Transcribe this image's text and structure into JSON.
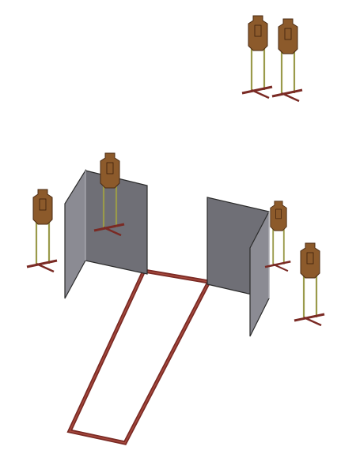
{
  "colors": {
    "background": "#ffffff",
    "wall_front": "#6f6f76",
    "wall_side": "#8b8b93",
    "wall_edge": "#2b2b2b",
    "box_outline": "#7a2a24",
    "target_face": "#8c5a2b",
    "target_edge": "#4a2a12",
    "stand_frame": "#9a9a4a",
    "stand_base": "#7a2a24"
  },
  "icons": {
    "wall": "barricade-wall",
    "target": "cardboard-target-on-stand",
    "box": "shooting-box-outline"
  },
  "scene": {
    "walls_count": 2,
    "targets_count": 6,
    "shooting_boxes_count": 1
  }
}
